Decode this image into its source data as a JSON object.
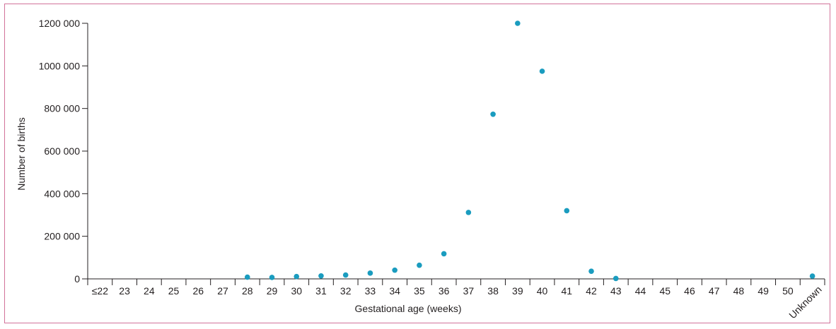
{
  "chart_data": {
    "type": "scatter",
    "title": "",
    "xlabel": "Gestational age (weeks)",
    "ylabel": "Number of births",
    "categories": [
      "≤22",
      "23",
      "24",
      "25",
      "26",
      "27",
      "28",
      "29",
      "30",
      "31",
      "32",
      "33",
      "34",
      "35",
      "36",
      "37",
      "38",
      "39",
      "40",
      "41",
      "42",
      "43",
      "44",
      "45",
      "46",
      "47",
      "48",
      "49",
      "50",
      "Unknown"
    ],
    "points": [
      {
        "x": "28",
        "y": 8000
      },
      {
        "x": "29",
        "y": 7000
      },
      {
        "x": "30",
        "y": 11000
      },
      {
        "x": "31",
        "y": 14000
      },
      {
        "x": "32",
        "y": 18000
      },
      {
        "x": "33",
        "y": 27000
      },
      {
        "x": "34",
        "y": 41000
      },
      {
        "x": "35",
        "y": 64000
      },
      {
        "x": "36",
        "y": 118000
      },
      {
        "x": "37",
        "y": 312000
      },
      {
        "x": "38",
        "y": 773000
      },
      {
        "x": "39",
        "y": 1200000
      },
      {
        "x": "40",
        "y": 975000
      },
      {
        "x": "41",
        "y": 320000
      },
      {
        "x": "42",
        "y": 36000
      },
      {
        "x": "43",
        "y": 2000
      },
      {
        "x": "Unknown",
        "y": 13000
      }
    ],
    "yticks": [
      0,
      200000,
      400000,
      600000,
      800000,
      1000000,
      1200000
    ],
    "ytick_labels": [
      "0",
      "200 000",
      "400 000",
      "600 000",
      "800 000",
      "1000 000",
      "1200 000"
    ],
    "ylim": [
      0,
      1200000
    ],
    "grid": false,
    "marker_color": "#1a9cbf"
  }
}
